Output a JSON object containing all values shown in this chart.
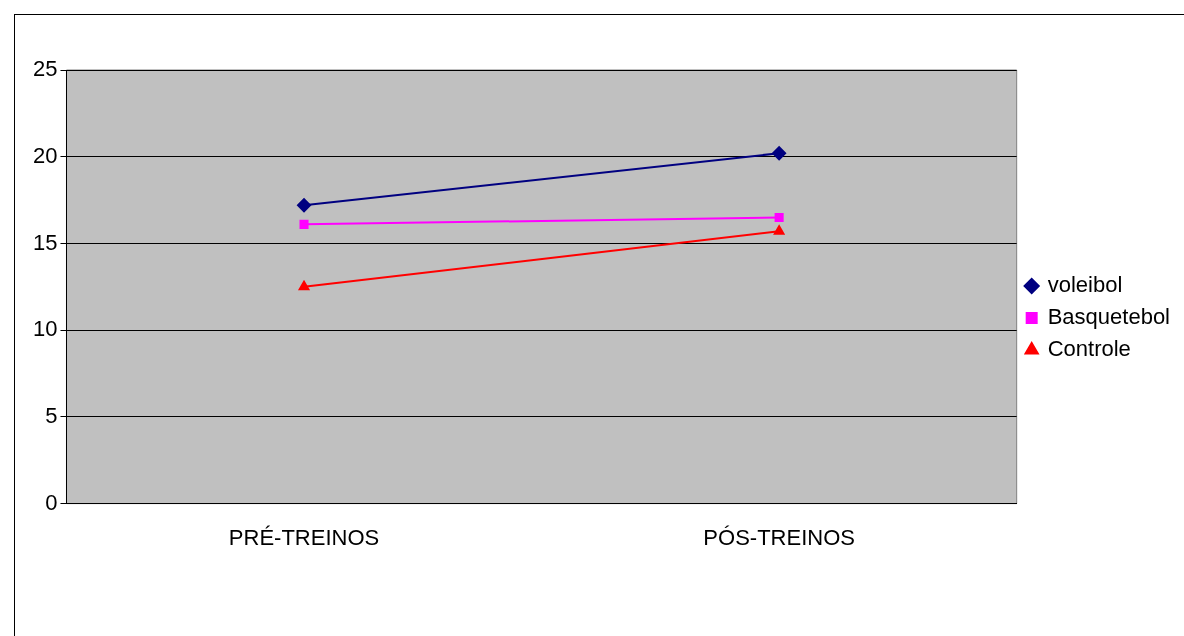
{
  "chart_data": {
    "type": "line",
    "categories": [
      "PRÉ-TREINOS",
      "PÓS-TREINOS"
    ],
    "series": [
      {
        "name": "voleibol",
        "color": "#000080",
        "marker": "diamond",
        "values": [
          17.2,
          20.2
        ]
      },
      {
        "name": "Basquetebol",
        "color": "#ff00ff",
        "marker": "square",
        "values": [
          16.1,
          16.5
        ]
      },
      {
        "name": "Controle",
        "color": "#ff0000",
        "marker": "triangle",
        "values": [
          12.5,
          15.7
        ]
      }
    ],
    "ylim": [
      0,
      25
    ],
    "yticks": [
      0,
      5,
      10,
      15,
      20,
      25
    ],
    "grid": "y",
    "legend": "right"
  }
}
